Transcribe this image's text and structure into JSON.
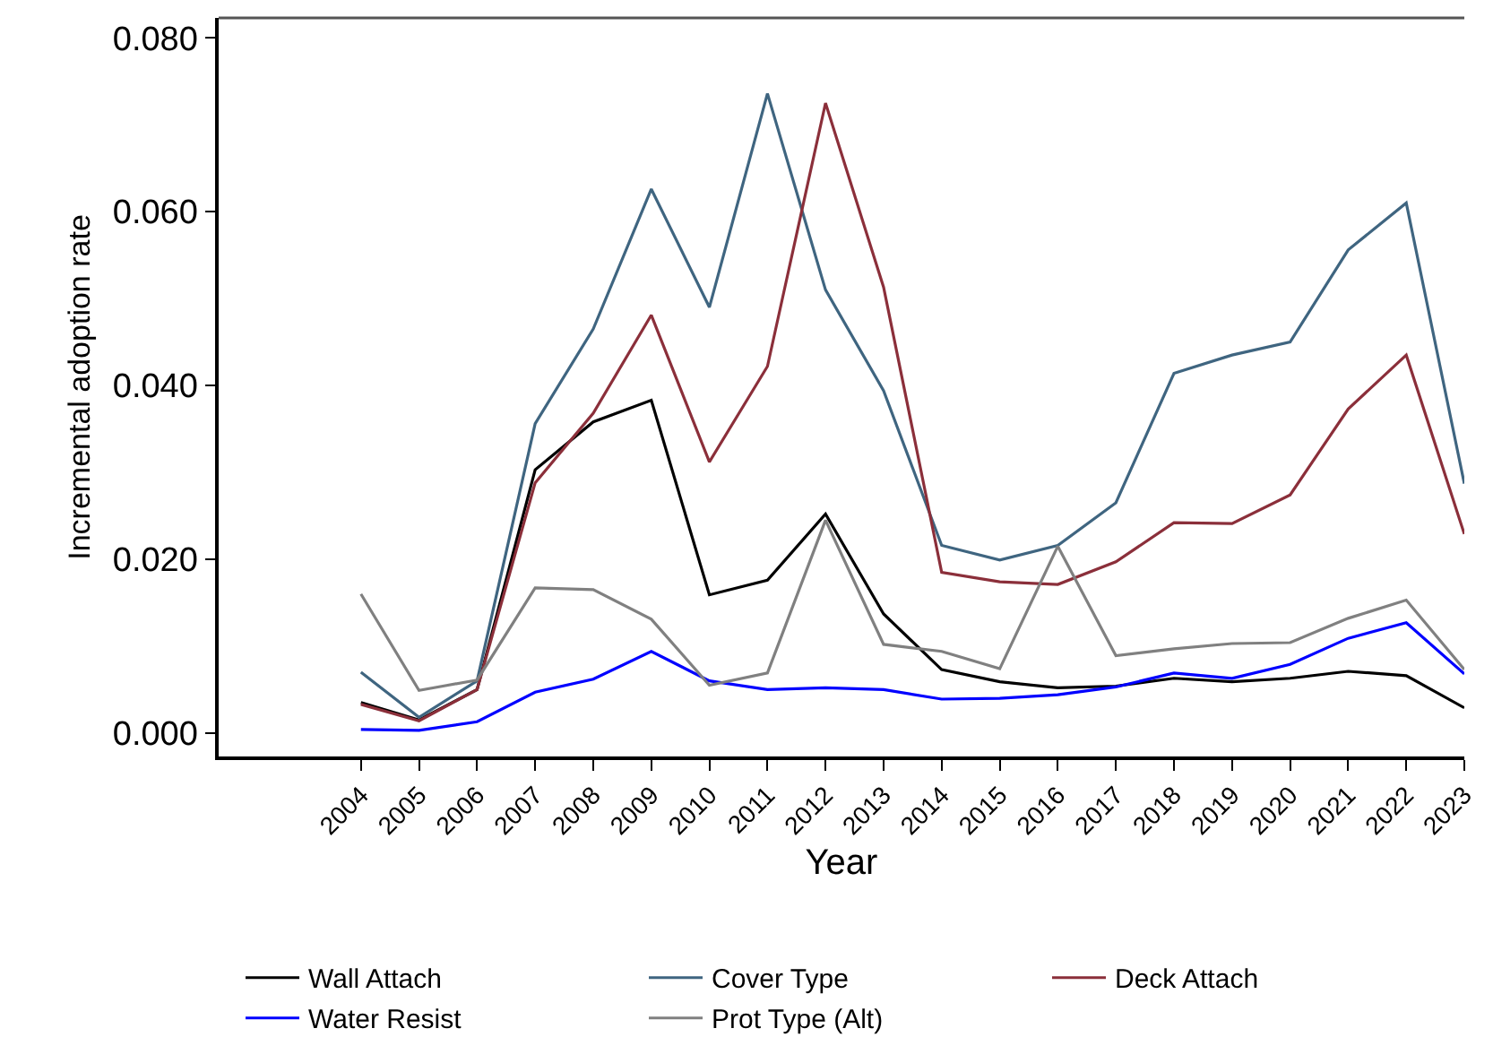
{
  "chart_data": {
    "type": "line",
    "xlabel": "Year",
    "ylabel": "Incremental adoption rate",
    "x": [
      2004,
      2005,
      2006,
      2007,
      2008,
      2009,
      2010,
      2011,
      2012,
      2013,
      2014,
      2015,
      2016,
      2017,
      2018,
      2019,
      2020,
      2021,
      2022,
      2023
    ],
    "xlim": [
      2001.55,
      2023
    ],
    "xticks": [
      2004,
      2005,
      2006,
      2007,
      2008,
      2009,
      2010,
      2011,
      2012,
      2013,
      2014,
      2015,
      2016,
      2017,
      2018,
      2019,
      2020,
      2021,
      2022,
      2023
    ],
    "ylim": [
      -0.0027,
      0.0823
    ],
    "yticks": [
      {
        "value": 0,
        "label": "0.000"
      },
      {
        "value": 0.02,
        "label": "0.020"
      },
      {
        "value": 0.04,
        "label": "0.040"
      },
      {
        "value": 0.06,
        "label": "0.060"
      },
      {
        "value": 0.08,
        "label": "0.080"
      }
    ],
    "legend": "bottom",
    "marker": "none",
    "line_style": "solid",
    "series": [
      {
        "name": "Wall Attach",
        "color": "#000000",
        "values": [
          0.0035,
          0.0015,
          0.005,
          0.0303,
          0.0358,
          0.0383,
          0.0159,
          0.0176,
          0.0252,
          0.0137,
          0.0073,
          0.0059,
          0.0052,
          0.0054,
          0.0063,
          0.0059,
          0.0063,
          0.0071,
          0.0066,
          0.0029
        ]
      },
      {
        "name": "Cover Type",
        "color": "#3f6580",
        "values": [
          0.007,
          0.0018,
          0.006,
          0.0356,
          0.0465,
          0.0626,
          0.049,
          0.0736,
          0.051,
          0.0394,
          0.0216,
          0.0199,
          0.0216,
          0.0265,
          0.0414,
          0.0435,
          0.045,
          0.0556,
          0.061,
          0.0287
        ]
      },
      {
        "name": "Deck Attach",
        "color": "#8b2f3a",
        "values": [
          0.0033,
          0.0014,
          0.005,
          0.0288,
          0.0368,
          0.0481,
          0.0312,
          0.0422,
          0.0725,
          0.0513,
          0.0185,
          0.0174,
          0.0171,
          0.0197,
          0.0242,
          0.0241,
          0.0274,
          0.0373,
          0.0435,
          0.0229
        ]
      },
      {
        "name": "Water Resist",
        "color": "#0000ff",
        "values": [
          0.0004,
          0.0003,
          0.0013,
          0.0047,
          0.0062,
          0.0094,
          0.006,
          0.005,
          0.0052,
          0.005,
          0.0039,
          0.004,
          0.0044,
          0.0053,
          0.0069,
          0.0063,
          0.0079,
          0.0109,
          0.0127,
          0.0068
        ]
      },
      {
        "name": "Prot Type (Alt)",
        "color": "#808080",
        "values": [
          0.016,
          0.0049,
          0.0061,
          0.0167,
          0.0165,
          0.0131,
          0.0055,
          0.0069,
          0.0245,
          0.0102,
          0.0094,
          0.0074,
          0.0215,
          0.0089,
          0.0097,
          0.0103,
          0.0104,
          0.0132,
          0.0153,
          0.0073
        ]
      }
    ]
  }
}
